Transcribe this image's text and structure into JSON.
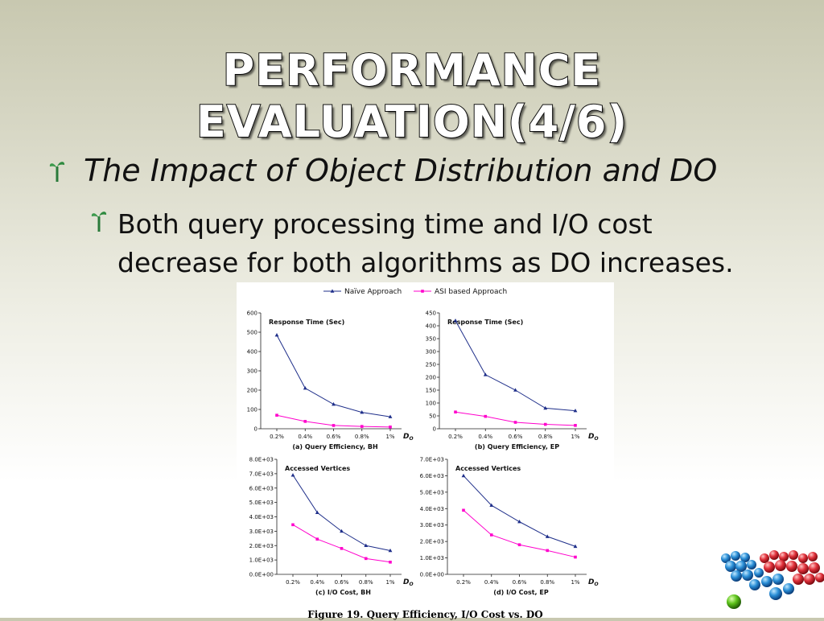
{
  "slide": {
    "title_line1": "PERFORMANCE",
    "title_line2": "EVALUATION(4/6)",
    "bullet1": "The Impact of Object Distribution and DO",
    "bullet2_line1": "Both query processing time and I/O cost",
    "bullet2_line2": "decrease for both algorithms as DO increases.",
    "caption": "Figure 19. Query Efficiency, I/O Cost vs. DO"
  },
  "legend": [
    {
      "name": "Naïve Approach",
      "color": "#1f2f8a",
      "marker": "triangle"
    },
    {
      "name": "ASI based Approach",
      "color": "#ff00cc",
      "marker": "square"
    }
  ],
  "chart_data": [
    {
      "type": "line",
      "title": "Response Time (Sec)",
      "subtitle": "(a) Query Efficiency, BH",
      "xlabel": "DO",
      "categories": [
        "0.2%",
        "0.4%",
        "0.6%",
        "0.8%",
        "1%"
      ],
      "ylim": [
        0,
        600
      ],
      "yticks": [
        "0",
        "100",
        "200",
        "300",
        "400",
        "500",
        "600"
      ],
      "series": [
        {
          "name": "Naïve Approach",
          "values": [
            485,
            210,
            127,
            85,
            62
          ]
        },
        {
          "name": "ASI based Approach",
          "values": [
            70,
            38,
            17,
            12,
            9
          ]
        }
      ]
    },
    {
      "type": "line",
      "title": "Response Time (Sec)",
      "subtitle": "(b) Query Efficiency, EP",
      "xlabel": "DO",
      "categories": [
        "0.2%",
        "0.4%",
        "0.6%",
        "0.8%",
        "1%"
      ],
      "ylim": [
        0,
        450
      ],
      "yticks": [
        "0",
        "50",
        "100",
        "150",
        "200",
        "250",
        "300",
        "350",
        "400",
        "450"
      ],
      "series": [
        {
          "name": "Naïve Approach",
          "values": [
            420,
            210,
            150,
            80,
            70
          ]
        },
        {
          "name": "ASI based Approach",
          "values": [
            65,
            48,
            25,
            17,
            13
          ]
        }
      ]
    },
    {
      "type": "line",
      "title": "Accessed Vertices",
      "subtitle": "(c) I/O Cost, BH",
      "xlabel": "DO",
      "categories": [
        "0.2%",
        "0.4%",
        "0.6%",
        "0.8%",
        "1%"
      ],
      "ylim": [
        0,
        8000
      ],
      "yticks": [
        "0.0E+00",
        "1.0E+03",
        "2.0E+03",
        "3.0E+03",
        "4.0E+03",
        "5.0E+03",
        "6.0E+03",
        "7.0E+03",
        "8.0E+03"
      ],
      "series": [
        {
          "name": "Naïve Approach",
          "values": [
            6900,
            4300,
            3000,
            2000,
            1650
          ]
        },
        {
          "name": "ASI based Approach",
          "values": [
            3450,
            2450,
            1800,
            1100,
            850
          ]
        }
      ]
    },
    {
      "type": "line",
      "title": "Accessed Vertices",
      "subtitle": "(d) I/O Cost, EP",
      "xlabel": "DO",
      "categories": [
        "0.2%",
        "0.4%",
        "0.6%",
        "0.8%",
        "1%"
      ],
      "ylim": [
        0,
        7000
      ],
      "yticks": [
        "0.0E+00",
        "1.0E+03",
        "2.0E+03",
        "3.0E+03",
        "4.0E+03",
        "5.0E+03",
        "6.0E+03",
        "7.0E+03"
      ],
      "series": [
        {
          "name": "Naïve Approach",
          "values": [
            6000,
            4200,
            3200,
            2300,
            1700
          ]
        },
        {
          "name": "ASI based Approach",
          "values": [
            3900,
            2400,
            1800,
            1450,
            1050
          ]
        }
      ]
    }
  ]
}
